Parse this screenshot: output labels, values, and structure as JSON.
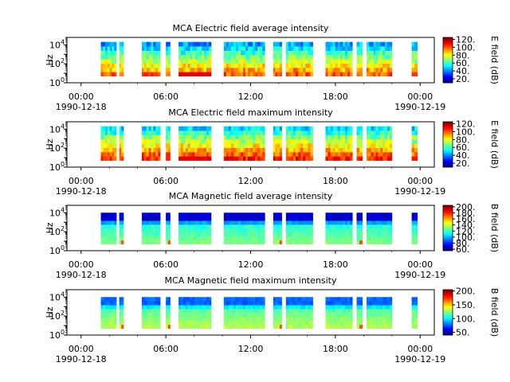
{
  "figure": {
    "x_ticks": [
      {
        "label": "00:00",
        "sublabel": "1990-12-18",
        "hour": 0
      },
      {
        "label": "06:00",
        "sublabel": "",
        "hour": 6
      },
      {
        "label": "12:00",
        "sublabel": "",
        "hour": 12
      },
      {
        "label": "18:00",
        "sublabel": "",
        "hour": 18
      },
      {
        "label": "00:00",
        "sublabel": "1990-12-19",
        "hour": 24
      }
    ],
    "x_range_hours": [
      -1,
      25
    ],
    "y_label": "Hz",
    "y_scale": "log",
    "y_ticks": [
      {
        "base": "10",
        "exp": "0",
        "value": 1
      },
      {
        "base": "10",
        "exp": "2",
        "value": 100
      },
      {
        "base": "10",
        "exp": "4",
        "value": 10000
      }
    ],
    "y_range": [
      1,
      60000
    ],
    "colormap": "jet"
  },
  "chart_data": [
    {
      "type": "heatmap",
      "title": "MCA  Electric field average intensity",
      "colorbar_label": "E field (dB)",
      "colorbar_ticks": [
        "20.",
        "40.",
        "60.",
        "80.",
        "100.",
        "120."
      ],
      "colorbar_range": [
        10,
        125
      ],
      "data_intervals_hours": [
        [
          1.4,
          2.5
        ],
        [
          2.7,
          3.0
        ],
        [
          4.3,
          5.6
        ],
        [
          6.0,
          6.3
        ],
        [
          6.9,
          9.2
        ],
        [
          10.1,
          13.0
        ],
        [
          13.6,
          14.2
        ],
        [
          14.5,
          16.4
        ],
        [
          17.3,
          19.2
        ],
        [
          19.5,
          19.9
        ],
        [
          20.2,
          22.0
        ],
        [
          23.4,
          23.8
        ]
      ],
      "frequency_range_hz": [
        5,
        20000
      ],
      "description_level": "mid"
    },
    {
      "type": "heatmap",
      "title": "MCA  Electric field maximum intensity",
      "colorbar_label": "E field (dB)",
      "colorbar_ticks": [
        "20.",
        "40.",
        "60.",
        "80.",
        "100.",
        "120."
      ],
      "colorbar_range": [
        10,
        125
      ],
      "data_intervals_hours": [
        [
          1.4,
          2.5
        ],
        [
          2.7,
          3.0
        ],
        [
          4.3,
          5.6
        ],
        [
          6.0,
          6.3
        ],
        [
          6.9,
          9.2
        ],
        [
          10.1,
          13.0
        ],
        [
          13.6,
          14.2
        ],
        [
          14.5,
          16.4
        ],
        [
          17.3,
          19.2
        ],
        [
          19.5,
          19.9
        ],
        [
          20.2,
          22.0
        ],
        [
          23.4,
          23.8
        ]
      ],
      "frequency_range_hz": [
        5,
        20000
      ],
      "description_level": "high"
    },
    {
      "type": "heatmap",
      "title": "MCA  Magnetic field average intensity",
      "colorbar_label": "B field (dB)",
      "colorbar_ticks": [
        "60.",
        "80.",
        "100.",
        "120.",
        "140.",
        "160.",
        "180.",
        "200."
      ],
      "colorbar_range": [
        55,
        205
      ],
      "data_intervals_hours": [
        [
          1.4,
          2.5
        ],
        [
          2.7,
          3.0
        ],
        [
          4.3,
          5.6
        ],
        [
          6.0,
          6.3
        ],
        [
          6.9,
          9.2
        ],
        [
          10.1,
          13.0
        ],
        [
          13.6,
          14.2
        ],
        [
          14.5,
          16.4
        ],
        [
          17.3,
          19.2
        ],
        [
          19.5,
          19.9
        ],
        [
          20.2,
          22.0
        ],
        [
          23.4,
          23.8
        ]
      ],
      "frequency_range_hz": [
        5,
        10000
      ],
      "description_level": "mag"
    },
    {
      "type": "heatmap",
      "title": "MCA  Magnetic field maximum intensity",
      "colorbar_label": "B field (dB)",
      "colorbar_ticks": [
        "50.",
        "100.",
        "150.",
        "200."
      ],
      "colorbar_range": [
        40,
        205
      ],
      "data_intervals_hours": [
        [
          1.4,
          2.5
        ],
        [
          2.7,
          3.0
        ],
        [
          4.3,
          5.6
        ],
        [
          6.0,
          6.3
        ],
        [
          6.9,
          9.2
        ],
        [
          10.1,
          13.0
        ],
        [
          13.6,
          14.2
        ],
        [
          14.5,
          16.4
        ],
        [
          17.3,
          19.2
        ],
        [
          19.5,
          19.9
        ],
        [
          20.2,
          22.0
        ],
        [
          23.4,
          23.8
        ]
      ],
      "frequency_range_hz": [
        5,
        10000
      ],
      "description_level": "magmax"
    }
  ]
}
